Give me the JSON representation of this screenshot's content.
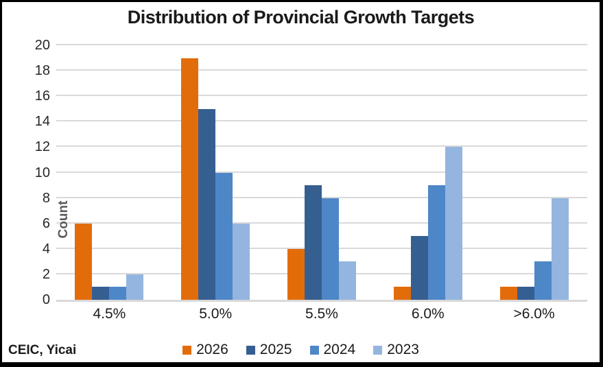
{
  "chart_data": {
    "type": "bar",
    "title": "Distribution of Provincial Growth Targets",
    "xlabel": "",
    "ylabel": "Count",
    "categories": [
      "4.5%",
      "5.0%",
      "5.5%",
      "6.0%",
      ">6.0%"
    ],
    "series": [
      {
        "name": "2026",
        "color": "#E36C0A",
        "values": [
          6,
          19,
          4,
          1,
          1
        ]
      },
      {
        "name": "2025",
        "color": "#365F91",
        "values": [
          1,
          15,
          9,
          5,
          1
        ]
      },
      {
        "name": "2024",
        "color": "#4E87C8",
        "values": [
          1,
          10,
          8,
          9,
          3
        ]
      },
      {
        "name": "2023",
        "color": "#94B5DF",
        "values": [
          2,
          6,
          3,
          12,
          8
        ]
      }
    ],
    "ylim": [
      0,
      20
    ],
    "ytick_step": 2,
    "yticks": [
      0,
      2,
      4,
      6,
      8,
      10,
      12,
      14,
      16,
      18,
      20
    ],
    "grid": true,
    "legend_position": "bottom"
  },
  "source": {
    "label": "CEIC, Yicai"
  },
  "colors": {
    "gridline": "#D9D9D9",
    "axis_line": "#D9D9D9",
    "ylabel_text": "#595959",
    "tick_text": "#262626",
    "title_text": "#1A1A1A",
    "frame_border": "#000000"
  }
}
